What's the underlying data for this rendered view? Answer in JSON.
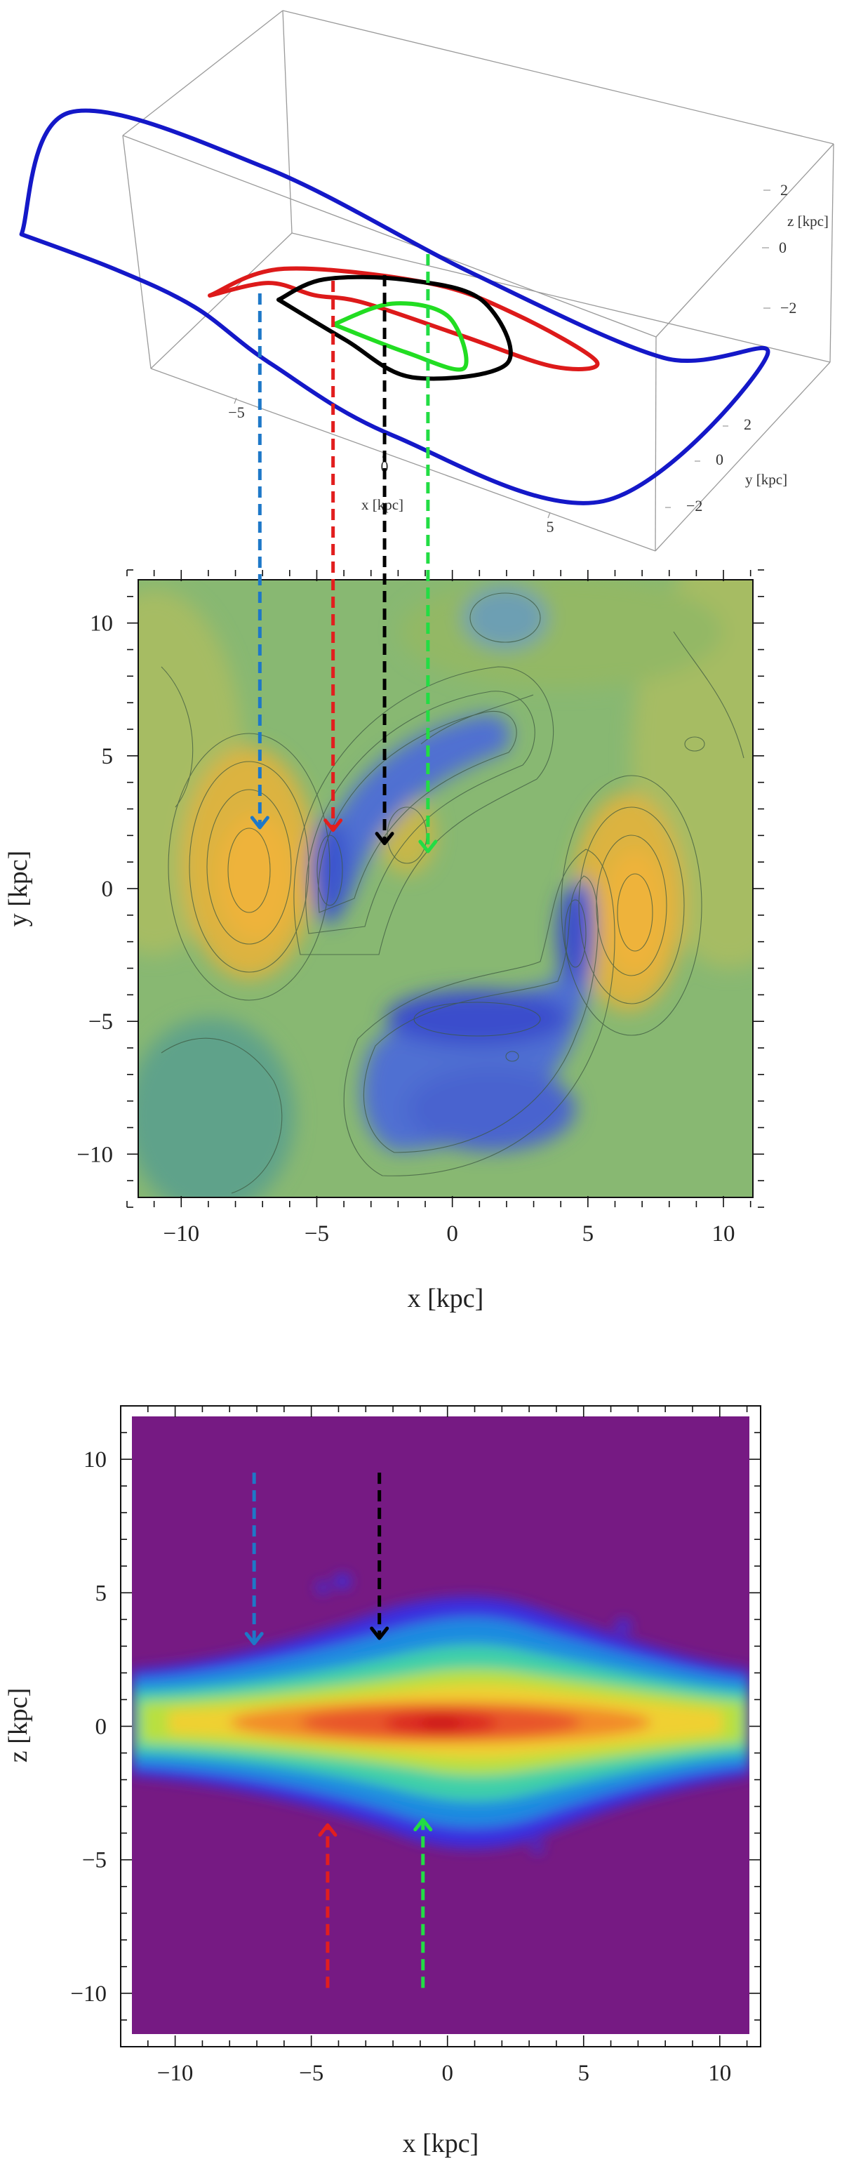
{
  "chart_data": [
    {
      "type": "line",
      "projection": "3d",
      "axes": {
        "x": {
          "label": "x [kpc]",
          "ticks": [
            -5,
            0,
            5
          ]
        },
        "y": {
          "label": "y [kpc]",
          "ticks": [
            2,
            0,
            -2
          ]
        },
        "z": {
          "label": "z [kpc]",
          "ticks": [
            2,
            0,
            -2
          ]
        }
      },
      "series": [
        {
          "color": "#1418c8",
          "points": [
            [
              -8.6,
              4.0,
              2.3
            ],
            [
              -9.4,
              0.0,
              3.0
            ],
            [
              -6.0,
              -4.2,
              -1.0
            ],
            [
              0.0,
              -4.2,
              -2.2
            ],
            [
              6.0,
              -3.4,
              -2.0
            ],
            [
              9.5,
              -2.5,
              0.3
            ],
            [
              7.5,
              2.5,
              -1.6
            ],
            [
              2.0,
              3.6,
              -0.7
            ],
            [
              -2.0,
              2.8,
              -0.5
            ],
            [
              -4.0,
              3.2,
              1.0
            ],
            [
              -6.0,
              3.8,
              2.0
            ],
            [
              -8.6,
              4.0,
              2.3
            ]
          ]
        },
        {
          "color": "#dd1a1a",
          "points": [
            [
              -4.5,
              1.5,
              -0.2
            ],
            [
              -3.0,
              0.3,
              0.4
            ],
            [
              0.5,
              -1.0,
              0.3
            ],
            [
              2.5,
              -2.0,
              -0.8
            ],
            [
              4.6,
              -2.4,
              -1.9
            ],
            [
              4.4,
              -0.5,
              -0.6
            ],
            [
              3.0,
              1.8,
              1.8
            ],
            [
              0.5,
              2.5,
              2.5
            ],
            [
              -1.5,
              1.4,
              1.0
            ],
            [
              -3.5,
              0.2,
              -0.4
            ],
            [
              -4.5,
              1.5,
              -0.2
            ]
          ]
        },
        {
          "color": "#000000",
          "points": [
            [
              -2.5,
              1.5,
              0.5
            ],
            [
              -2.0,
              0.0,
              0.2
            ],
            [
              -0.5,
              -1.6,
              -0.5
            ],
            [
              1.6,
              -1.8,
              -0.5
            ],
            [
              3.6,
              0.5,
              0.0
            ],
            [
              1.5,
              1.7,
              -0.4
            ],
            [
              -0.5,
              1.6,
              0.0
            ],
            [
              -2.5,
              1.5,
              0.5
            ]
          ]
        },
        {
          "color": "#22dd22",
          "points": [
            [
              -0.9,
              1.5,
              0.3
            ],
            [
              0.2,
              0.4,
              0.6
            ],
            [
              1.5,
              -0.2,
              0.2
            ],
            [
              2.4,
              0.6,
              -0.6
            ],
            [
              1.2,
              1.5,
              0.2
            ],
            [
              -0.9,
              1.5,
              0.3
            ]
          ]
        }
      ]
    },
    {
      "type": "heatmap",
      "subtype": "contour",
      "xlabel": "x [kpc]",
      "ylabel": "y [kpc]",
      "xlim": [
        -12,
        11.5
      ],
      "ylim": [
        -12,
        12
      ],
      "xticks": [
        -10,
        -5,
        0,
        5,
        10
      ],
      "yticks": [
        -10,
        -5,
        0,
        5,
        10
      ],
      "colors": {
        "low": "#4662d6",
        "mid": "#7fb67c",
        "high": "#e6b43c"
      },
      "markers": [
        {
          "x": -7.1,
          "y": 2.3,
          "color": "#1e78c8"
        },
        {
          "x": -4.4,
          "y": 2.2,
          "color": "#e21e1e"
        },
        {
          "x": -2.5,
          "y": 1.7,
          "color": "#000000"
        },
        {
          "x": -0.9,
          "y": 1.4,
          "color": "#22dd44"
        }
      ]
    },
    {
      "type": "heatmap",
      "subtype": "density",
      "xlabel": "x [kpc]",
      "ylabel": "z [kpc]",
      "xlim": [
        -12,
        11.5
      ],
      "ylim": [
        -12,
        12
      ],
      "xticks": [
        -10,
        -5,
        0,
        5,
        10
      ],
      "yticks": [
        -10,
        -5,
        0,
        5,
        10
      ],
      "colors": {
        "background": "#761a83",
        "peak": "#dc2020"
      },
      "markers": [
        {
          "x": -7.1,
          "y": 3.1,
          "color": "#1e78c8",
          "direction": "down"
        },
        {
          "x": -2.5,
          "y": 3.3,
          "color": "#000000",
          "direction": "down"
        },
        {
          "x": -4.4,
          "y": -3.7,
          "color": "#e21e1e",
          "direction": "up"
        },
        {
          "x": -0.9,
          "y": -3.5,
          "color": "#22dd44",
          "direction": "up"
        }
      ]
    }
  ]
}
